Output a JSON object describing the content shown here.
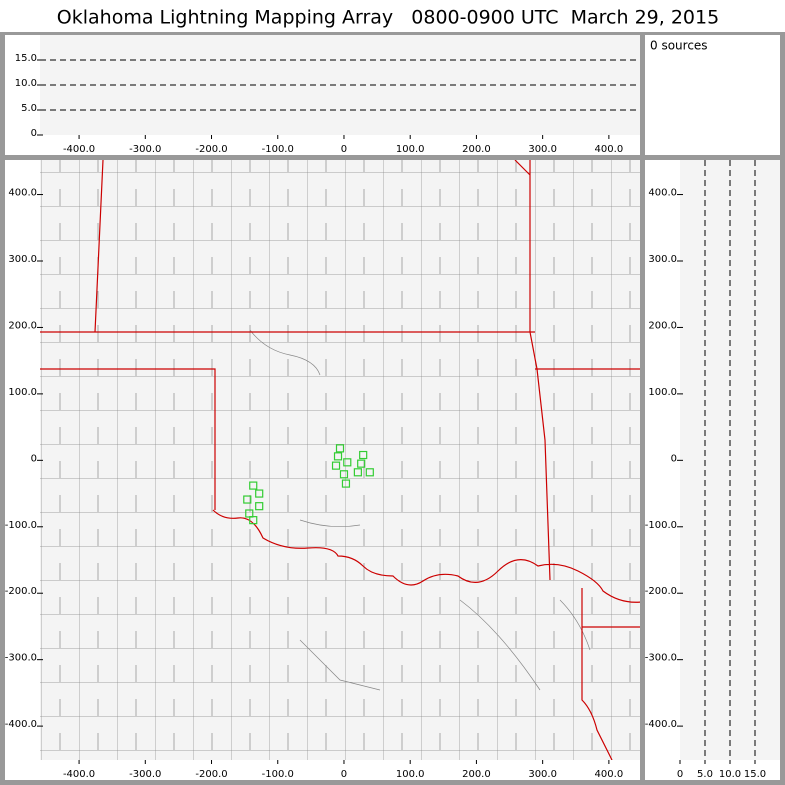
{
  "header": {
    "title": "Oklahoma Lightning Mapping Array   0800-0900 UTC  March 29, 2015"
  },
  "source_panel": {
    "text": "0 sources"
  },
  "chart_data": [
    {
      "type": "scatter",
      "xlim": [
        -459,
        447
      ],
      "ylim": [
        0,
        20
      ],
      "xticks": [
        {
          "value": -400,
          "label": "-400.0"
        },
        {
          "value": -300,
          "label": "-300.0"
        },
        {
          "value": -200,
          "label": "-200.0"
        },
        {
          "value": -100,
          "label": "-100.0"
        },
        0,
        {
          "value": 100,
          "label": "100.0"
        },
        {
          "value": 200,
          "label": "200.0"
        },
        {
          "value": 300,
          "label": "300.0"
        },
        {
          "value": 400,
          "label": "400.0"
        }
      ],
      "yticks": [
        0,
        {
          "value": 5,
          "label": "5.0"
        },
        {
          "value": 10,
          "label": "10.0"
        },
        {
          "value": 15,
          "label": "15.0"
        }
      ],
      "grid": true,
      "grid_axis": "y"
    },
    {
      "type": "scatter",
      "xlim": [
        -459,
        447
      ],
      "ylim": [
        -451,
        452
      ],
      "xticks": [
        {
          "value": -400,
          "label": "-400.0"
        },
        {
          "value": -300,
          "label": "-300.0"
        },
        {
          "value": -200,
          "label": "-200.0"
        },
        {
          "value": -100,
          "label": "-100.0"
        },
        0,
        {
          "value": 100,
          "label": "100.0"
        },
        {
          "value": 200,
          "label": "200.0"
        },
        {
          "value": 300,
          "label": "300.0"
        },
        {
          "value": 400,
          "label": "400.0"
        }
      ],
      "yticks": [
        {
          "value": 400,
          "label": "400.0"
        },
        {
          "value": 300,
          "label": "300.0"
        },
        {
          "value": 200,
          "label": "200.0"
        },
        {
          "value": 100,
          "label": "100.0"
        },
        0,
        {
          "value": -100,
          "label": "-100.0"
        },
        {
          "value": -200,
          "label": "-200.0"
        },
        {
          "value": -300,
          "label": "-300.0"
        },
        {
          "value": -400,
          "label": "-400.0"
        }
      ],
      "grid": false,
      "color": "#33cc33",
      "x": [
        -6,
        -9,
        5,
        -12,
        29,
        26,
        21,
        0,
        39,
        3,
        -137,
        -128,
        -146,
        -128,
        -143,
        -137
      ],
      "values": [
        18,
        6,
        -3,
        -8,
        8,
        -5,
        -18,
        -21,
        -18,
        -35,
        -38,
        -50,
        -59,
        -69,
        -80,
        -90
      ]
    },
    {
      "type": "scatter",
      "xlim": [
        0,
        20
      ],
      "ylim": [
        -451,
        452
      ],
      "xticks": [
        0,
        {
          "value": 5,
          "label": "5.0"
        },
        {
          "value": 10,
          "label": "10.0"
        },
        {
          "value": 15,
          "label": "15.0"
        }
      ],
      "yticks": [
        {
          "value": 400,
          "label": "400.0"
        },
        {
          "value": 300,
          "label": "300.0"
        },
        {
          "value": 200,
          "label": "200.0"
        },
        {
          "value": 100,
          "label": "100.0"
        },
        0,
        {
          "value": -100,
          "label": "-100.0"
        },
        {
          "value": -200,
          "label": "-200.0"
        },
        {
          "value": -300,
          "label": "-300.0"
        },
        {
          "value": -400,
          "label": "-400.0"
        }
      ],
      "grid": true,
      "grid_axis": "x"
    }
  ]
}
